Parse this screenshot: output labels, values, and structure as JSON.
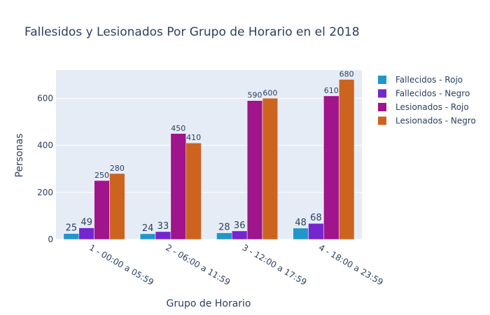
{
  "chart_data": {
    "type": "bar",
    "title": "Fallesidos y Lesionados Por Grupo de Horario en el 2018",
    "xlabel": "Grupo de Horario",
    "ylabel": "Personas",
    "ylim": [
      0,
      720
    ],
    "yticks": [
      0,
      200,
      400,
      600
    ],
    "grid": true,
    "legend_position": "top-right",
    "categories": [
      "1 - 00:00 a 05:59",
      "2 - 06:00 a 11:59",
      "3 - 12:00 a 17:59",
      "4 - 18:00 a 23:59"
    ],
    "series": [
      {
        "name": "Fallecidos - Rojo",
        "values": [
          25,
          24,
          28,
          48
        ],
        "color": "#2196c9"
      },
      {
        "name": "Fallecidos - Negro",
        "values": [
          49,
          33,
          36,
          68
        ],
        "color": "#7526cf"
      },
      {
        "name": "Lesionados - Rojo",
        "values": [
          250,
          450,
          590,
          610
        ],
        "color": "#a0148c"
      },
      {
        "name": "Lesionados - Negro",
        "values": [
          280,
          410,
          600,
          680
        ],
        "color": "#cc6420"
      }
    ],
    "colors": {
      "plot_background": "#e5ecf6",
      "grid": "#ffffff",
      "text": "#2a3f5f"
    }
  }
}
